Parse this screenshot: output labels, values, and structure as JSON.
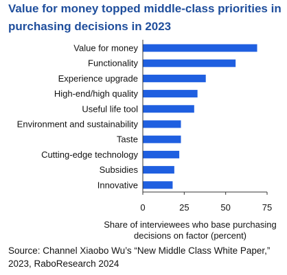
{
  "title": "Value for money topped middle-class priorities in purchasing decisions in 2023",
  "source": "Source: Channel Xiaobo Wu’s “New Middle Class White Paper,” 2023, RaboResearch 2024",
  "chart_data": {
    "type": "bar",
    "orientation": "horizontal",
    "categories": [
      "Value for money",
      "Functionality",
      "Experience upgrade",
      "High-end/high quality",
      "Useful life tool",
      "Environment and sustainability",
      "Taste",
      "Cutting-edge technology",
      "Subsidies",
      "Innovative"
    ],
    "values": [
      69,
      56,
      38,
      33,
      31,
      23,
      23,
      22,
      19,
      18
    ],
    "xlabel": "Share of interviewees who base purchasing decisions on factor (percent)",
    "xlabel_lines": [
      "Share of interviewees who base purchasing",
      "decisions on factor (percent)"
    ],
    "xticks": [
      0,
      25,
      50,
      75
    ],
    "xlim": [
      0,
      75
    ],
    "bar_color": "#1f5fe0",
    "axis_color": "#333333",
    "grid": false
  }
}
